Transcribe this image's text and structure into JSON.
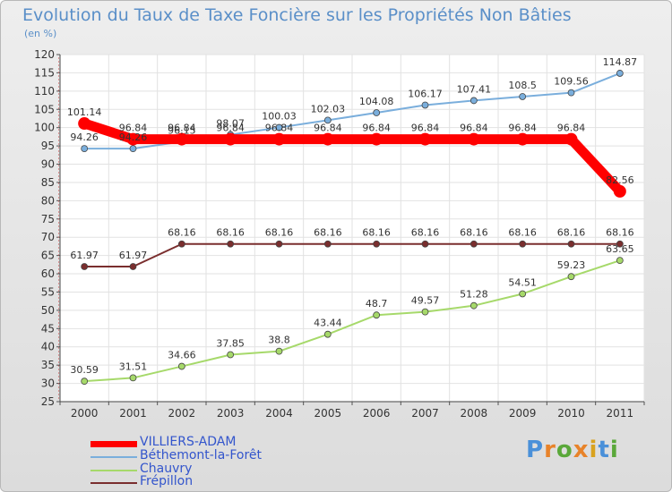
{
  "header": {
    "title": "Evolution du Taux de Taxe Foncière sur les Propriétés Non Bâties",
    "unit": "(en %)"
  },
  "logo": {
    "text": "Proxiti"
  },
  "chart_data": {
    "type": "line",
    "title": "Evolution du Taux de Taxe Foncière sur les Propriétés Non Bâties",
    "ylabel": "(en %)",
    "xlabel": "",
    "x": [
      "2000",
      "2001",
      "2002",
      "2003",
      "2004",
      "2005",
      "2006",
      "2007",
      "2008",
      "2009",
      "2010",
      "2011"
    ],
    "ylim": [
      25,
      120
    ],
    "yticks": [
      25,
      30,
      35,
      40,
      45,
      50,
      55,
      60,
      65,
      70,
      75,
      80,
      85,
      90,
      95,
      100,
      105,
      110,
      115,
      120
    ],
    "grid": true,
    "legend_position": "bottom-left",
    "series": [
      {
        "name": "VILLIERS-ADAM",
        "color": "#ff0000",
        "values": [
          101.14,
          96.84,
          96.84,
          96.84,
          96.84,
          96.84,
          96.84,
          96.84,
          96.84,
          96.84,
          96.84,
          82.56
        ],
        "labels": [
          "101.14",
          "96.84",
          "96.84",
          "96.84",
          "96.84",
          "96.84",
          "96.84",
          "96.84",
          "96.84",
          "96.84",
          "96.84",
          "82.56"
        ]
      },
      {
        "name": "Béthemont-la-Forêt",
        "color": "#7aaedc",
        "values": [
          94.26,
          94.26,
          96.15,
          98.07,
          100.03,
          102.03,
          104.08,
          106.17,
          107.41,
          108.5,
          109.56,
          114.87
        ],
        "labels": [
          "94.26",
          "94.26",
          "96.15",
          "98.07",
          "100.03",
          "102.03",
          "104.08",
          "106.17",
          "107.41",
          "108.5",
          "109.56",
          "114.87"
        ]
      },
      {
        "name": "Chauvry",
        "color": "#a6d96a",
        "values": [
          30.59,
          31.51,
          34.66,
          37.85,
          38.8,
          43.44,
          48.7,
          49.57,
          51.28,
          54.51,
          59.23,
          63.65
        ],
        "labels": [
          "30.59",
          "31.51",
          "34.66",
          "37.85",
          "38.8",
          "43.44",
          "48.7",
          "49.57",
          "51.28",
          "54.51",
          "59.23",
          "63.65"
        ]
      },
      {
        "name": "Frépillon",
        "color": "#7a2e2e",
        "values": [
          61.97,
          61.97,
          68.16,
          68.16,
          68.16,
          68.16,
          68.16,
          68.16,
          68.16,
          68.16,
          68.16,
          68.16
        ],
        "labels": [
          "61.97",
          "61.97",
          "68.16",
          "68.16",
          "68.16",
          "68.16",
          "68.16",
          "68.16",
          "68.16",
          "68.16",
          "68.16",
          "68.16"
        ]
      }
    ]
  }
}
